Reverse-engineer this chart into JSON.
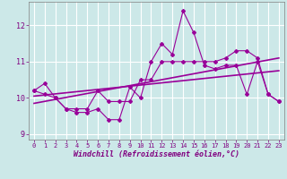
{
  "x": [
    0,
    1,
    2,
    3,
    4,
    5,
    6,
    7,
    8,
    9,
    10,
    11,
    12,
    13,
    14,
    15,
    16,
    17,
    18,
    19,
    20,
    21,
    22,
    23
  ],
  "line1": [
    10.2,
    10.4,
    10.0,
    9.7,
    9.6,
    9.6,
    9.7,
    9.4,
    9.4,
    10.3,
    10.0,
    11.0,
    11.5,
    11.2,
    12.4,
    11.8,
    10.9,
    10.8,
    10.9,
    10.9,
    10.1,
    11.0,
    10.1,
    9.9
  ],
  "line2": [
    10.2,
    10.1,
    10.0,
    9.7,
    9.7,
    9.7,
    10.2,
    9.9,
    9.9,
    9.9,
    10.5,
    10.5,
    11.0,
    11.0,
    11.0,
    11.0,
    11.0,
    11.0,
    11.1,
    11.3,
    11.3,
    11.1,
    10.1,
    9.9
  ],
  "trend1_x": [
    0,
    23
  ],
  "trend1_y": [
    10.05,
    10.75
  ],
  "trend2_x": [
    0,
    23
  ],
  "trend2_y": [
    9.85,
    11.1
  ],
  "line_color": "#990099",
  "bg_color": "#cce8e8",
  "grid_color": "#ffffff",
  "xlabel": "Windchill (Refroidissement éolien,°C)",
  "xlabel_color": "#800080",
  "tick_color": "#800080",
  "xlim": [
    -0.5,
    23.5
  ],
  "ylim": [
    8.85,
    12.65
  ],
  "yticks": [
    9,
    10,
    11,
    12
  ],
  "xticks": [
    0,
    1,
    2,
    3,
    4,
    5,
    6,
    7,
    8,
    9,
    10,
    11,
    12,
    13,
    14,
    15,
    16,
    17,
    18,
    19,
    20,
    21,
    22,
    23
  ]
}
